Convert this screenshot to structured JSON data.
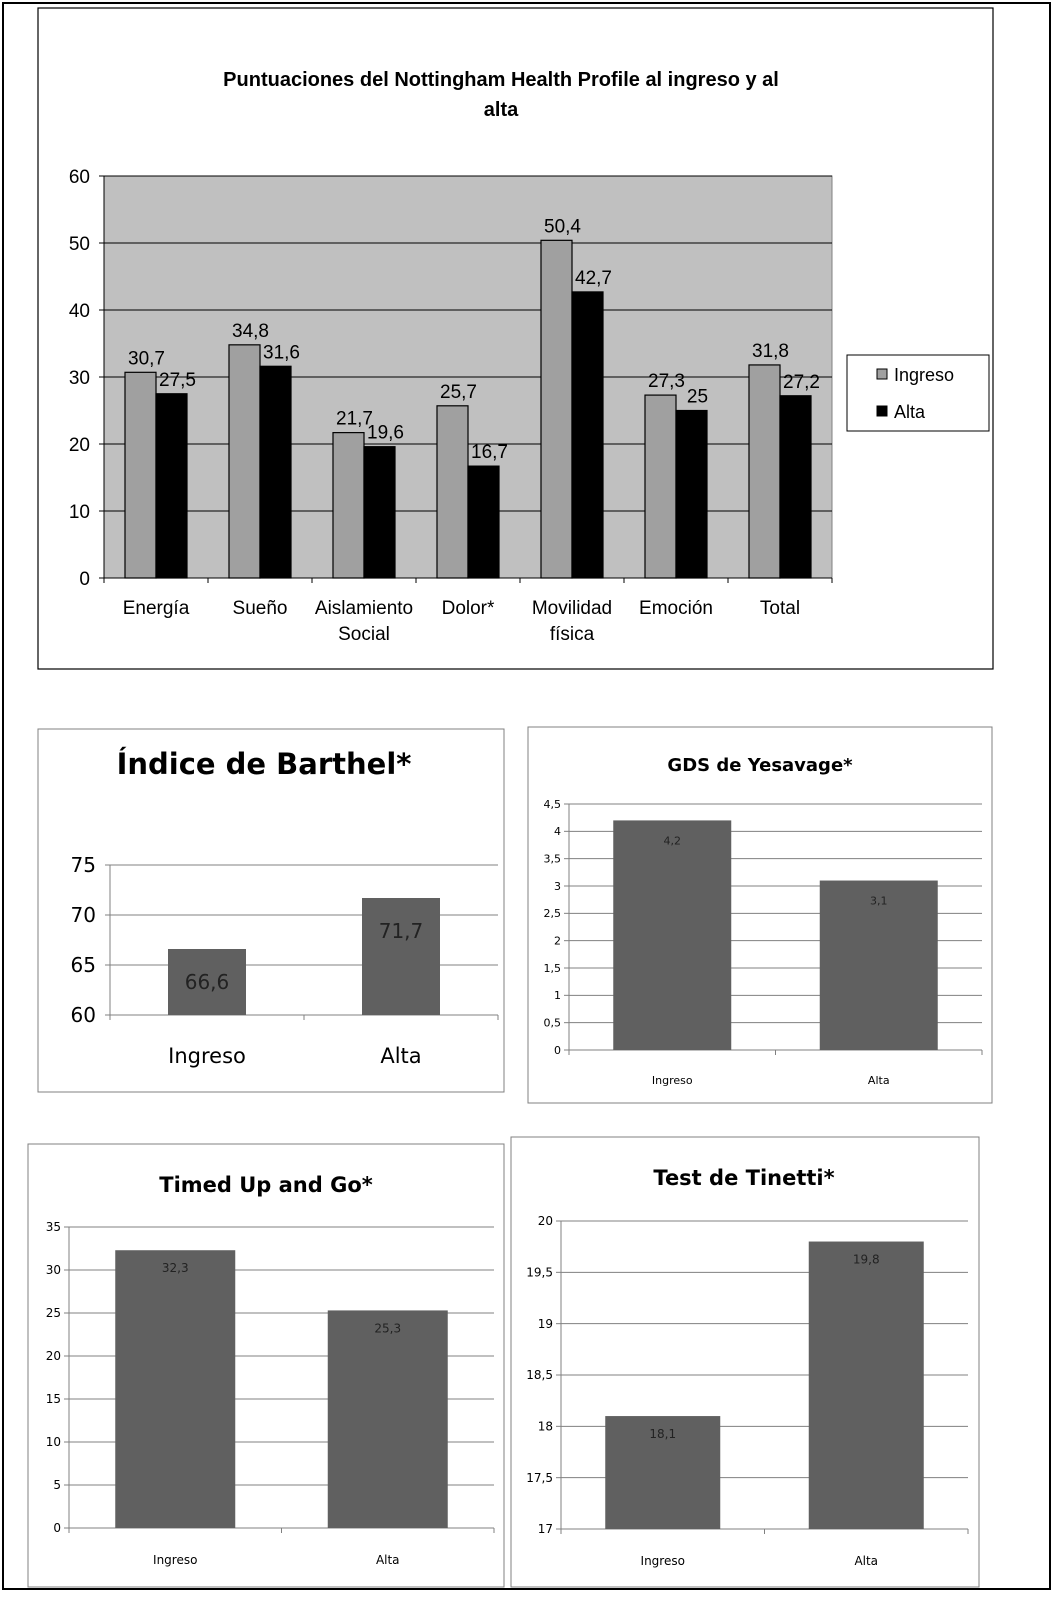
{
  "chart_data": [
    {
      "type": "bar",
      "title": "Puntuaciones del Nottingham Health Profile al ingreso y al alta",
      "title_lines": [
        "Puntuaciones del Nottingham Health Profile al ingreso y al",
        "alta"
      ],
      "categories": [
        "Energía",
        "Sueño",
        "Aislamiento Social",
        "Dolor*",
        "Movilidad física",
        "Emoción",
        "Total"
      ],
      "category_lines": [
        [
          "Energía"
        ],
        [
          "Sueño"
        ],
        [
          "Aislamiento",
          "Social"
        ],
        [
          "Dolor*"
        ],
        [
          "Movilidad",
          "física"
        ],
        [
          "Emoción"
        ],
        [
          "Total"
        ]
      ],
      "series": [
        {
          "name": "Ingreso",
          "values": [
            30.7,
            34.8,
            21.7,
            25.7,
            50.4,
            27.3,
            31.8
          ],
          "labels": [
            "30,7",
            "34,8",
            "21,7",
            "25,7",
            "50,4",
            "27,3",
            "31,8"
          ],
          "color": "#a0a0a0"
        },
        {
          "name": "Alta",
          "values": [
            27.5,
            31.6,
            19.6,
            16.7,
            42.7,
            25,
            27.2
          ],
          "labels": [
            "27,5",
            "31,6",
            "19,6",
            "16,7",
            "42,7",
            "25",
            "27,2"
          ],
          "color": "#000000"
        }
      ],
      "ylim": [
        0,
        60
      ],
      "yticks": [
        0,
        10,
        20,
        30,
        40,
        50,
        60
      ],
      "plot_background": "#c0c0c0",
      "grid": true,
      "legend_position": "right"
    },
    {
      "type": "bar",
      "title": "Índice de Barthel*",
      "categories": [
        "Ingreso",
        "Alta"
      ],
      "values": [
        66.6,
        71.7
      ],
      "labels": [
        "66,6",
        "71,7"
      ],
      "ylim": [
        60,
        75
      ],
      "yticks": [
        60,
        65,
        70,
        75
      ],
      "bar_color": "#606060",
      "grid": true
    },
    {
      "type": "bar",
      "title": "GDS de Yesavage*",
      "categories": [
        "Ingreso",
        "Alta"
      ],
      "values": [
        4.2,
        3.1
      ],
      "labels": [
        "4,2",
        "3,1"
      ],
      "ylim": [
        0,
        4.5
      ],
      "yticks": [
        "0",
        "0,5",
        "1",
        "1,5",
        "2",
        "2,5",
        "3",
        "3,5",
        "4",
        "4,5"
      ],
      "bar_color": "#606060",
      "grid": true
    },
    {
      "type": "bar",
      "title": "Timed Up and Go*",
      "categories": [
        "Ingreso",
        "Alta"
      ],
      "values": [
        32.3,
        25.3
      ],
      "labels": [
        "32,3",
        "25,3"
      ],
      "ylim": [
        0,
        35
      ],
      "yticks": [
        "0",
        "5",
        "10",
        "15",
        "20",
        "25",
        "30",
        "35"
      ],
      "bar_color": "#606060",
      "grid": true
    },
    {
      "type": "bar",
      "title": "Test de Tinetti*",
      "categories": [
        "Ingreso",
        "Alta"
      ],
      "values": [
        18.1,
        19.8
      ],
      "labels": [
        "18,1",
        "19,8"
      ],
      "ylim": [
        17,
        20
      ],
      "yticks": [
        "17",
        "17,5",
        "18",
        "18,5",
        "19",
        "19,5",
        "20"
      ],
      "bar_color": "#606060",
      "grid": true
    }
  ]
}
